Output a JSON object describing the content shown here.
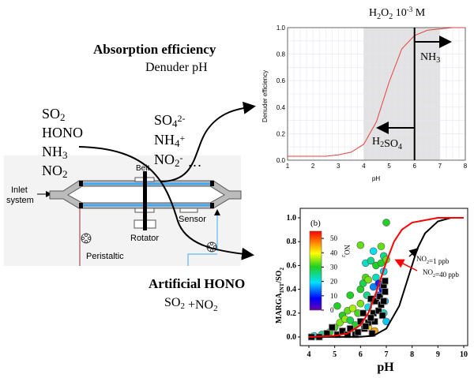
{
  "labels": {
    "absorption_title": "Absorption efficiency",
    "absorption_sub": "Denuder pH",
    "gases": [
      "SO2",
      "HONO",
      "NH3",
      "NO2"
    ],
    "ions": [
      "SO4",
      "2-",
      "NH4",
      "+",
      "NO2",
      "-",
      "…"
    ],
    "artificial_title": "Artificial HONO",
    "artificial_sub": "SO2 +NO2"
  },
  "denuder": {
    "inlet": [
      "Inlet",
      "system"
    ],
    "belt": "Belt",
    "rotator": "Rotator",
    "sensor": "Sensor",
    "peristaltic": "Peristaltic"
  },
  "chart_data": [
    {
      "type": "line",
      "title": "H2O2 10-3 M",
      "xlabel": "pH",
      "ylabel": "Denuder efficiency",
      "xlim": [
        1,
        8
      ],
      "ylim": [
        0,
        1
      ],
      "xticks": [
        "1",
        "2",
        "3",
        "4",
        "5",
        "6",
        "7",
        "8"
      ],
      "yticks": [
        "0.0",
        "0.2",
        "0.4",
        "0.6",
        "0.8",
        "1.0"
      ],
      "grid": true,
      "shaded_region": [
        4,
        7
      ],
      "vertical_line": 6,
      "annotations": [
        "NH3",
        "H2SO4"
      ],
      "series": [
        {
          "color": "#e8413c",
          "x": [
            1,
            1.5,
            2,
            2.5,
            3,
            3.5,
            4,
            4.5,
            5,
            5.5,
            6,
            6.5,
            7,
            7.5,
            8
          ],
          "y": [
            0.03,
            0.03,
            0.03,
            0.03,
            0.04,
            0.06,
            0.12,
            0.29,
            0.59,
            0.84,
            0.94,
            0.98,
            0.99,
            1.0,
            1.0
          ]
        }
      ]
    },
    {
      "type": "scatter",
      "panel_label": "(b)",
      "xlabel": "pH",
      "ylabel": "MARGA",
      "ylabel_sub": "INT",
      "ylabel_tail": "/SO2",
      "xlim": [
        4,
        10
      ],
      "ylim": [
        0,
        1
      ],
      "xticks": [
        "4",
        "5",
        "6",
        "7",
        "8",
        "9",
        "10"
      ],
      "yticks": [
        "0.0",
        "0.2",
        "0.4",
        "0.6",
        "0.8",
        "1.0"
      ],
      "colorbar": {
        "label": "NO2",
        "ticks": [
          "0",
          "10",
          "20",
          "30",
          "40",
          "50"
        ],
        "range": [
          0,
          55
        ]
      },
      "curves": [
        {
          "name": "NO2=1 ppb",
          "color": "#000000",
          "x": [
            4,
            5,
            6,
            6.5,
            7,
            7.5,
            7.85,
            8.2,
            8.5,
            9,
            9.5,
            10
          ],
          "y": [
            0,
            0,
            0.002,
            0.01,
            0.07,
            0.26,
            0.5,
            0.74,
            0.87,
            0.97,
            1.0,
            1.0
          ]
        },
        {
          "name": "NO2=40 ppb",
          "color": "#ff0000",
          "x": [
            4,
            5,
            5.5,
            6,
            6.3,
            6.6,
            6.8,
            7,
            7.3,
            7.6,
            8,
            9,
            10
          ],
          "y": [
            0,
            0.01,
            0.03,
            0.1,
            0.2,
            0.37,
            0.5,
            0.63,
            0.8,
            0.9,
            0.96,
            1.0,
            1.0
          ]
        }
      ],
      "circles": [
        [
          4.2,
          0.01,
          20
        ],
        [
          4.5,
          0.02,
          25
        ],
        [
          4.8,
          0.04,
          30
        ],
        [
          5.0,
          0.08,
          32
        ],
        [
          5.1,
          0.26,
          30
        ],
        [
          5.2,
          0.12,
          34
        ],
        [
          5.3,
          0.18,
          30
        ],
        [
          5.4,
          0.15,
          35
        ],
        [
          5.5,
          0.22,
          33
        ],
        [
          5.6,
          0.35,
          30
        ],
        [
          5.6,
          0.14,
          28
        ],
        [
          5.7,
          0.24,
          36
        ],
        [
          5.8,
          0.1,
          30
        ],
        [
          5.9,
          0.2,
          32
        ],
        [
          6.0,
          0.77,
          33
        ],
        [
          6.0,
          0.4,
          30
        ],
        [
          6.0,
          0.28,
          34
        ],
        [
          6.1,
          0.45,
          28
        ],
        [
          6.2,
          0.62,
          22
        ],
        [
          6.2,
          0.5,
          32
        ],
        [
          6.25,
          0.35,
          25
        ],
        [
          6.3,
          0.48,
          34
        ],
        [
          6.3,
          0.25,
          20
        ],
        [
          6.4,
          0.64,
          25
        ],
        [
          6.5,
          0.72,
          20
        ],
        [
          6.5,
          0.42,
          15
        ],
        [
          6.5,
          0.3,
          28
        ],
        [
          6.55,
          0.05,
          45
        ],
        [
          6.6,
          0.6,
          30
        ],
        [
          6.6,
          0.5,
          22
        ],
        [
          6.7,
          0.35,
          12
        ],
        [
          6.8,
          0.76,
          33
        ],
        [
          6.8,
          0.62,
          30
        ],
        [
          6.85,
          0.4,
          8
        ],
        [
          6.9,
          0.68,
          25
        ],
        [
          6.9,
          0.55,
          20
        ],
        [
          6.95,
          0.3,
          18
        ],
        [
          7.0,
          0.96,
          30
        ],
        [
          7.0,
          0.65,
          33
        ],
        [
          7.0,
          0.13,
          18
        ],
        [
          6.9,
          0.2,
          22
        ],
        [
          6.7,
          0.45,
          10
        ],
        [
          6.3,
          0.08,
          42
        ]
      ],
      "squares": [
        [
          4.1,
          0.0
        ],
        [
          4.4,
          0.0
        ],
        [
          4.7,
          0.03
        ],
        [
          4.9,
          0.08
        ],
        [
          5.1,
          0.02
        ],
        [
          5.3,
          0.05
        ],
        [
          5.5,
          0.02
        ],
        [
          5.6,
          0.07
        ],
        [
          5.8,
          0.02
        ],
        [
          5.9,
          0.04
        ],
        [
          6.0,
          0.13
        ],
        [
          6.1,
          0.2
        ],
        [
          6.15,
          0.07
        ],
        [
          6.3,
          0.12
        ],
        [
          6.4,
          0.32
        ],
        [
          6.45,
          0.03
        ],
        [
          6.5,
          0.2
        ],
        [
          6.55,
          0.13
        ],
        [
          6.6,
          0.3
        ],
        [
          6.7,
          0.22
        ],
        [
          6.75,
          0.34
        ],
        [
          6.8,
          0.27
        ],
        [
          6.85,
          0.18
        ],
        [
          6.9,
          0.43
        ],
        [
          6.95,
          0.47
        ],
        [
          6.95,
          0.38
        ],
        [
          6.9,
          0.3
        ],
        [
          6.4,
          0.16
        ],
        [
          6.2,
          0.09
        ]
      ]
    }
  ]
}
